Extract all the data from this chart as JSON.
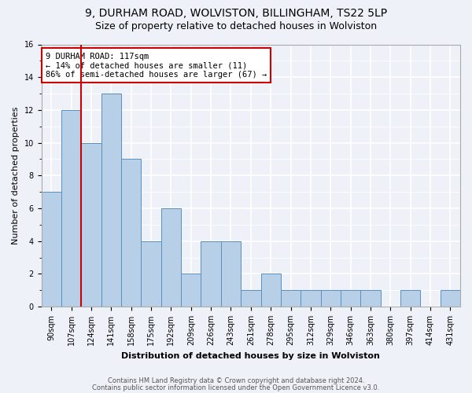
{
  "title1": "9, DURHAM ROAD, WOLVISTON, BILLINGHAM, TS22 5LP",
  "title2": "Size of property relative to detached houses in Wolviston",
  "xlabel": "Distribution of detached houses by size in Wolviston",
  "ylabel": "Number of detached properties",
  "bin_labels": [
    "90sqm",
    "107sqm",
    "124sqm",
    "141sqm",
    "158sqm",
    "175sqm",
    "192sqm",
    "209sqm",
    "226sqm",
    "243sqm",
    "261sqm",
    "278sqm",
    "295sqm",
    "312sqm",
    "329sqm",
    "346sqm",
    "363sqm",
    "380sqm",
    "397sqm",
    "414sqm",
    "431sqm"
  ],
  "values": [
    7,
    12,
    10,
    13,
    9,
    4,
    6,
    2,
    4,
    4,
    1,
    2,
    1,
    1,
    1,
    1,
    1,
    0,
    1,
    0,
    1
  ],
  "bar_color": "#b8cfe8",
  "bar_edge_color": "#5a8fc0",
  "highlight_label": "9 DURHAM ROAD: 117sqm",
  "annotation_line1": "← 14% of detached houses are smaller (11)",
  "annotation_line2": "86% of semi-detached houses are larger (67) →",
  "annotation_box_color": "#ffffff",
  "annotation_box_edge_color": "#cc0000",
  "vline_color": "#cc0000",
  "vline_x_index": 1.5,
  "ylim": [
    0,
    16
  ],
  "yticks": [
    0,
    2,
    4,
    6,
    8,
    10,
    12,
    14,
    16
  ],
  "footnote1": "Contains HM Land Registry data © Crown copyright and database right 2024.",
  "footnote2": "Contains public sector information licensed under the Open Government Licence v3.0.",
  "bg_color": "#eef2f8",
  "grid_color": "#ffffff",
  "title1_fontsize": 10,
  "title2_fontsize": 9,
  "xlabel_fontsize": 8,
  "ylabel_fontsize": 8,
  "tick_fontsize": 7,
  "footnote_fontsize": 6,
  "annot_fontsize": 7.5
}
